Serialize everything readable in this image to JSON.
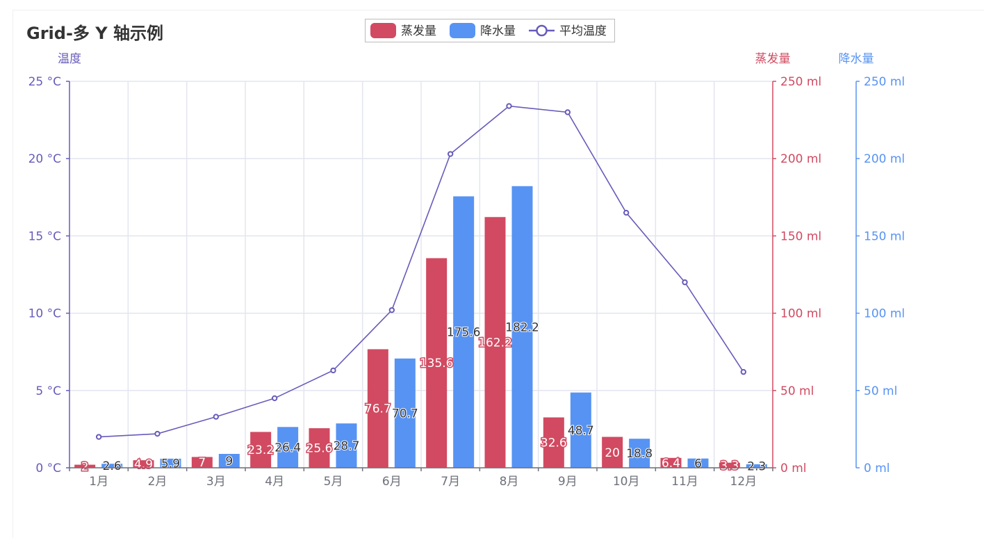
{
  "title": "Grid-多 Y 轴示例",
  "colors": {
    "evaporation": "#d14a61",
    "precipitation": "#5793f3",
    "temperature": "#675bba"
  },
  "chart_data": {
    "type": "bar",
    "title": "Grid-多 Y 轴示例",
    "categories": [
      "1月",
      "2月",
      "3月",
      "4月",
      "5月",
      "6月",
      "7月",
      "8月",
      "9月",
      "10月",
      "11月",
      "12月"
    ],
    "series": [
      {
        "name": "蒸发量",
        "type": "bar",
        "axis": "蒸发量",
        "values": [
          2.0,
          4.9,
          7.0,
          23.2,
          25.6,
          76.7,
          135.6,
          162.2,
          32.6,
          20.0,
          6.4,
          3.3
        ],
        "labels": [
          "2",
          "4.9",
          "7",
          "23.2",
          "25.6",
          "76.7",
          "135.6",
          "162.2",
          "32.6",
          "20",
          "6.4",
          "3.3"
        ]
      },
      {
        "name": "降水量",
        "type": "bar",
        "axis": "降水量",
        "values": [
          2.6,
          5.9,
          9.0,
          26.4,
          28.7,
          70.7,
          175.6,
          182.2,
          48.7,
          18.8,
          6.0,
          2.3
        ],
        "labels": [
          "2.6",
          "5.9",
          "9",
          "26.4",
          "28.7",
          "70.7",
          "175.6",
          "182.2",
          "48.7",
          "18.8",
          "6",
          "2.3"
        ]
      },
      {
        "name": "平均温度",
        "type": "line",
        "axis": "温度",
        "values": [
          2.0,
          2.2,
          3.3,
          4.5,
          6.3,
          10.2,
          20.3,
          23.4,
          23.0,
          16.5,
          12.0,
          6.2
        ]
      }
    ],
    "y_axes": [
      {
        "name": "温度",
        "position": "left",
        "min": 0,
        "max": 25,
        "ticks": [
          "0 °C",
          "5 °C",
          "10 °C",
          "15 °C",
          "20 °C",
          "25 °C"
        ]
      },
      {
        "name": "蒸发量",
        "position": "right",
        "min": 0,
        "max": 250,
        "ticks": [
          "0 ml",
          "50 ml",
          "100 ml",
          "150 ml",
          "200 ml",
          "250 ml"
        ]
      },
      {
        "name": "降水量",
        "position": "right-outer",
        "min": 0,
        "max": 250,
        "ticks": [
          "0 ml",
          "50 ml",
          "100 ml",
          "150 ml",
          "200 ml",
          "250 ml"
        ]
      }
    ],
    "grid": true,
    "legend_position": "top-center"
  }
}
